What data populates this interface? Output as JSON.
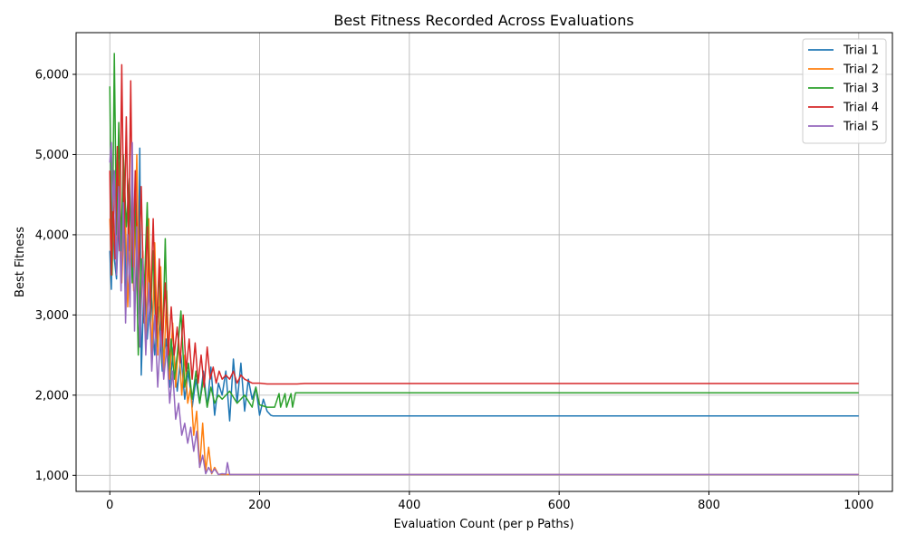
{
  "chart_data": {
    "type": "line",
    "title": "Best Fitness Recorded Across Evaluations",
    "xlabel": "Evaluation Count (per p Paths)",
    "ylabel": "Best Fitness",
    "xlim": [
      -45,
      1045
    ],
    "ylim": [
      800,
      6520
    ],
    "xticks": [
      0,
      200,
      400,
      600,
      800,
      1000
    ],
    "xtick_labels": [
      "0",
      "200",
      "400",
      "600",
      "800",
      "1000"
    ],
    "yticks": [
      1000,
      2000,
      3000,
      4000,
      5000,
      6000
    ],
    "ytick_labels": [
      "1,000",
      "2,000",
      "3,000",
      "4,000",
      "5,000",
      "6,000"
    ],
    "grid": true,
    "legend_position": "top-right",
    "series": [
      {
        "name": "Trial 1",
        "color": "#1f77b4",
        "x": [
          0,
          2,
          4,
          6,
          9,
          12,
          15,
          18,
          22,
          26,
          30,
          34,
          38,
          40,
          42,
          46,
          50,
          55,
          60,
          65,
          70,
          75,
          80,
          85,
          90,
          95,
          100,
          105,
          110,
          115,
          120,
          125,
          130,
          135,
          140,
          145,
          150,
          155,
          160,
          165,
          170,
          175,
          180,
          185,
          190,
          195,
          200,
          205,
          210,
          215,
          218,
          1000
        ],
        "values": [
          3800,
          3320,
          4350,
          3700,
          3450,
          4200,
          3600,
          4800,
          3300,
          4500,
          3600,
          4100,
          3400,
          5080,
          2250,
          3500,
          2700,
          3300,
          2500,
          3100,
          2300,
          2700,
          2100,
          2600,
          2050,
          2500,
          1950,
          2300,
          1850,
          2200,
          1900,
          2300,
          1850,
          2350,
          1750,
          2150,
          2000,
          2300,
          1680,
          2450,
          1900,
          2400,
          1800,
          2200,
          1950,
          2100,
          1750,
          1950,
          1800,
          1750,
          1740,
          1740
        ]
      },
      {
        "name": "Trial 2",
        "color": "#ff7f0e",
        "x": [
          0,
          3,
          6,
          9,
          12,
          16,
          20,
          24,
          28,
          32,
          36,
          40,
          44,
          48,
          52,
          56,
          60,
          64,
          68,
          72,
          76,
          80,
          84,
          88,
          92,
          96,
          100,
          104,
          108,
          112,
          116,
          120,
          124,
          128,
          132,
          136,
          140,
          145,
          1000
        ],
        "values": [
          4200,
          3500,
          4700,
          3600,
          4900,
          3400,
          4500,
          3100,
          4200,
          3300,
          5000,
          2700,
          3800,
          2600,
          4200,
          2400,
          3900,
          2500,
          3600,
          2300,
          3300,
          2200,
          2900,
          2100,
          2700,
          2000,
          2500,
          1900,
          2100,
          1500,
          1800,
          1100,
          1650,
          1050,
          1350,
          1020,
          1100,
          1010,
          1010
        ]
      },
      {
        "name": "Trial 3",
        "color": "#2ca02c",
        "x": [
          0,
          3,
          6,
          9,
          12,
          15,
          18,
          22,
          26,
          30,
          34,
          38,
          42,
          46,
          50,
          54,
          58,
          62,
          66,
          70,
          74,
          78,
          82,
          86,
          90,
          95,
          100,
          105,
          110,
          115,
          120,
          125,
          130,
          135,
          140,
          145,
          150,
          160,
          170,
          180,
          190,
          195,
          200,
          210,
          220,
          226,
          228,
          234,
          236,
          242,
          244,
          248,
          1000
        ],
        "values": [
          5850,
          3500,
          6260,
          4000,
          5400,
          3800,
          5000,
          4100,
          4700,
          3400,
          4500,
          2500,
          3700,
          3300,
          4400,
          2900,
          3800,
          2600,
          3600,
          2400,
          3950,
          2300,
          2700,
          2200,
          2500,
          3050,
          2100,
          2400,
          1950,
          2300,
          1900,
          2200,
          1850,
          2100,
          1900,
          2000,
          1950,
          2050,
          1900,
          2000,
          1850,
          2100,
          1880,
          1850,
          1850,
          2020,
          1850,
          2020,
          1850,
          2020,
          1850,
          2030,
          2030
        ]
      },
      {
        "name": "Trial 4",
        "color": "#d62728",
        "x": [
          0,
          2,
          4,
          7,
          10,
          13,
          16,
          19,
          22,
          25,
          28,
          31,
          34,
          38,
          42,
          46,
          50,
          54,
          58,
          62,
          66,
          70,
          74,
          78,
          82,
          86,
          90,
          94,
          98,
          102,
          106,
          110,
          114,
          118,
          122,
          126,
          130,
          134,
          138,
          142,
          146,
          150,
          155,
          160,
          165,
          170,
          175,
          180,
          190,
          200,
          210,
          220,
          230,
          240,
          250,
          260,
          270,
          280,
          1000
        ],
        "values": [
          4800,
          3500,
          4500,
          3700,
          5100,
          3800,
          6120,
          3900,
          5470,
          3800,
          5920,
          3600,
          4800,
          3300,
          4600,
          2900,
          4100,
          3000,
          4200,
          2700,
          3700,
          2600,
          3400,
          2500,
          3100,
          2500,
          2850,
          2400,
          3000,
          2300,
          2700,
          2200,
          2650,
          2150,
          2500,
          2100,
          2600,
          2200,
          2350,
          2150,
          2300,
          2200,
          2250,
          2200,
          2300,
          2150,
          2250,
          2200,
          2150,
          2150,
          2140,
          2140,
          2140,
          2140,
          2140,
          2145,
          2145,
          2145,
          2145
        ]
      },
      {
        "name": "Trial 5",
        "color": "#9467bd",
        "x": [
          0,
          2,
          4,
          6,
          9,
          12,
          15,
          18,
          21,
          24,
          27,
          30,
          33,
          36,
          40,
          44,
          48,
          52,
          56,
          60,
          64,
          68,
          72,
          76,
          80,
          84,
          88,
          92,
          96,
          100,
          104,
          108,
          112,
          116,
          120,
          124,
          128,
          132,
          136,
          140,
          145,
          150,
          155,
          157,
          160,
          1000
        ],
        "values": [
          4900,
          5150,
          4300,
          4800,
          3500,
          4600,
          3300,
          4400,
          2900,
          4000,
          3100,
          5150,
          2800,
          4100,
          2600,
          3700,
          2500,
          3400,
          2300,
          3000,
          2100,
          2800,
          2200,
          2600,
          1900,
          2300,
          1700,
          1900,
          1500,
          1650,
          1400,
          1600,
          1300,
          1550,
          1100,
          1250,
          1020,
          1100,
          1030,
          1080,
          1010,
          1020,
          1015,
          1160,
          1010,
          1010
        ]
      }
    ]
  }
}
